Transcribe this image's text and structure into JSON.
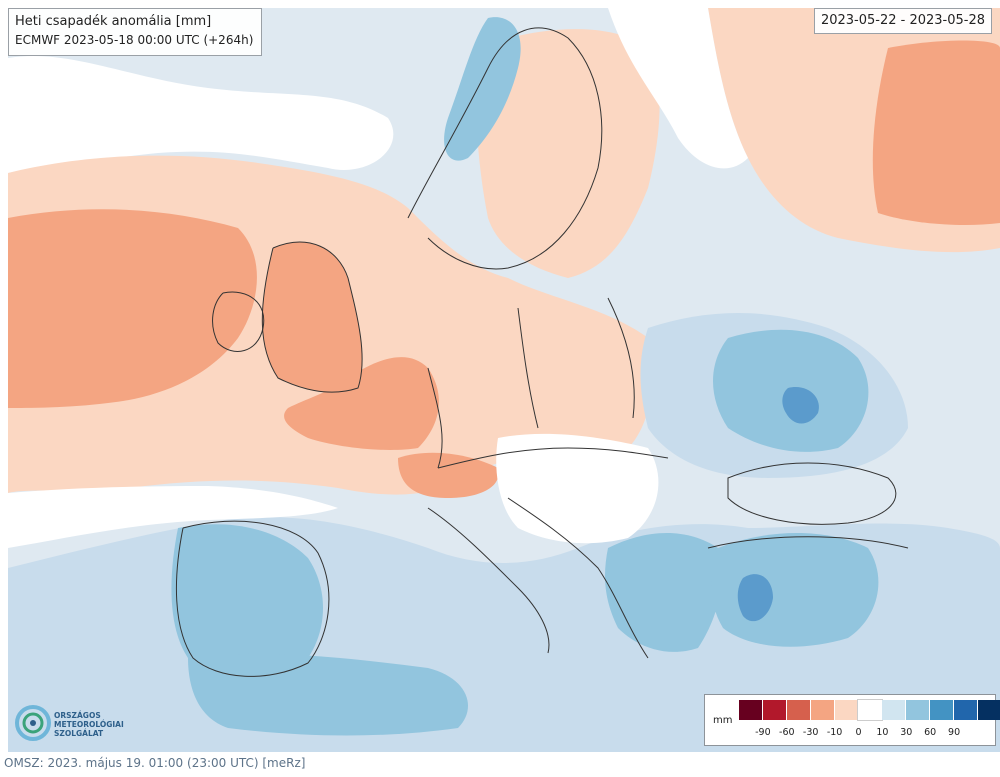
{
  "map": {
    "title": "Heti csapadék anomália [mm]",
    "subtitle": "ECMWF 2023-05-18 00:00 UTC (+264h)",
    "date_range": "2023-05-22 - 2023-05-28",
    "colors": {
      "sea_background": "#dfe9f1",
      "neutral": "#ffffff",
      "dry_light": "#fbd7c2",
      "dry_medium": "#f4a582",
      "wet_light": "#c8dcec",
      "wet_medium": "#92c5de",
      "wet_strong": "#5b9bcc"
    }
  },
  "legend": {
    "unit": "mm",
    "colors": [
      "#67001f",
      "#b2182b",
      "#d6604d",
      "#f4a582",
      "#fbd7c2",
      "#ffffff",
      "#d1e5f0",
      "#92c5de",
      "#4393c3",
      "#2166ac",
      "#053061"
    ],
    "ticks": [
      "-90",
      "-60",
      "-30",
      "-10",
      "0",
      "10",
      "30",
      "60",
      "90"
    ]
  },
  "logo": {
    "line1": "ORSZÁGOS",
    "line2": "METEOROLÓGIAI",
    "line3": "SZOLGÁLAT",
    "icon": "omsz-logo-icon"
  },
  "footer": {
    "text": "OMSZ: 2023. május 19. 01:00 (23:00  UTC)  [meRz]"
  }
}
